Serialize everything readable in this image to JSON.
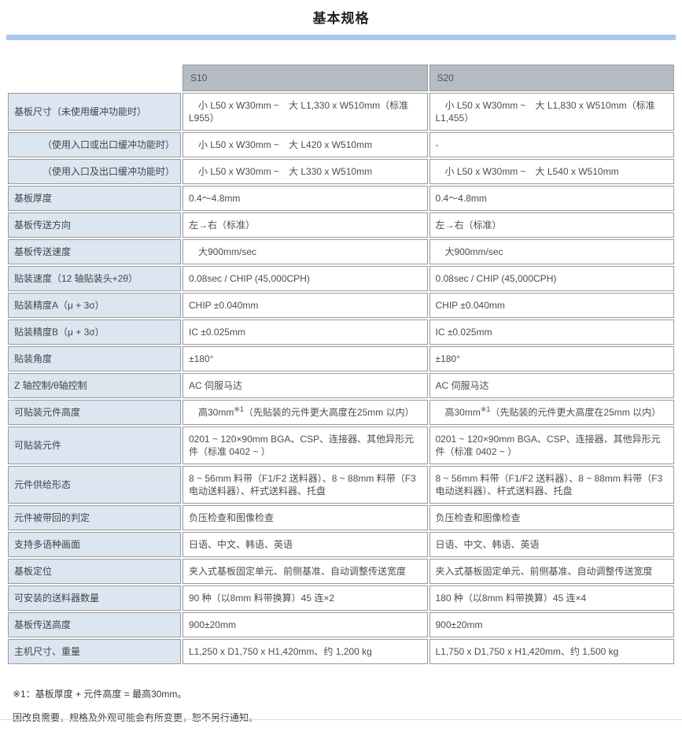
{
  "page": {
    "title": "基本规格"
  },
  "colors": {
    "accent_bar": "#a9c8ee",
    "header_bg": "#b6bcc4",
    "label_bg": "#dce6f1",
    "cell_border": "#9a9a9a"
  },
  "table": {
    "column_headers": [
      "S10",
      "S20"
    ],
    "rows": [
      {
        "label": "基板尺寸（未使用缓冲功能时）",
        "s10": "　小 L50 x W30mm ~　大 L1,330 x W510mm（标准L955）",
        "s20": "　小 L50 x W30mm ~　大 L1,830 x W510mm（标准L1,455）"
      },
      {
        "label": "（使用入口或出口缓冲功能时）",
        "label_align": "right",
        "s10": "　小 L50 x W30mm ~　大 L420 x W510mm",
        "s20": "-"
      },
      {
        "label": "（使用入口及出口缓冲功能时）",
        "label_align": "right",
        "s10": "　小 L50 x W30mm ~　大 L330 x W510mm",
        "s20": "　小 L50 x W30mm ~　大 L540 x W510mm"
      },
      {
        "label": "基板厚度",
        "s10": "0.4～4.8mm",
        "s20": "0.4～4.8mm"
      },
      {
        "label": "基板传送方向",
        "s10": "左→右（标准）",
        "s20": "左→右（标准）"
      },
      {
        "label": "基板传送速度",
        "s10": "　大900mm/sec",
        "s20": "　大900mm/sec"
      },
      {
        "label": "贴装速度（12 轴贴装头+2θ）",
        "s10": "0.08sec / CHIP (45,000CPH)",
        "s20": "0.08sec / CHIP (45,000CPH)"
      },
      {
        "label": "贴装精度A（μ + 3σ）",
        "s10": "CHIP ±0.040mm",
        "s20": "CHIP ±0.040mm"
      },
      {
        "label": "贴装精度B（μ + 3σ）",
        "s10": "IC ±0.025mm",
        "s20": "IC ±0.025mm"
      },
      {
        "label": "贴装角度",
        "s10": "±180°",
        "s20": "±180°"
      },
      {
        "label": "Z 轴控制/θ轴控制",
        "s10": "AC 伺服马达",
        "s20": "AC 伺服马达"
      },
      {
        "label": "可贴装元件高度",
        "s10": "　高30mm※1（先贴装的元件更大高度在25mm 以内）",
        "s20": "　高30mm※1（先贴装的元件更大高度在25mm 以内）"
      },
      {
        "label": "可贴装元件",
        "s10": "0201 ~ 120×90mm BGA、CSP、连接器、其他异形元件（标准 0402 ~ ）",
        "s20": "0201 ~ 120×90mm BGA、CSP、连接器、其他异形元件（标准 0402 ~ ）"
      },
      {
        "label": "元件供给形态",
        "s10": "8 ~ 56mm 料带（F1/F2 送料器）、8 ~ 88mm 料带（F3 电动送料器）、杆式送料器、托盘",
        "s20": "8 ~ 56mm 料带（F1/F2 送料器）、8 ~ 88mm 料带（F3 电动送料器）、杆式送料器、托盘"
      },
      {
        "label": "元件被带回的判定",
        "s10": "负压检查和图像检查",
        "s20": "负压检查和图像检查"
      },
      {
        "label": "支持多语种画面",
        "s10": "日语、中文、韩语、英语",
        "s20": "日语、中文、韩语、英语"
      },
      {
        "label": "基板定位",
        "s10": "夹入式基板固定单元、前侧基准、自动调整传送宽度",
        "s20": "夹入式基板固定单元、前侧基准、自动调整传送宽度"
      },
      {
        "label": "可安装的送料器数量",
        "s10": "90 种（以8mm 料带换算）45 连×2",
        "s20": "180 种（以8mm 料带换算）45 连×4"
      },
      {
        "label": "基板传送高度",
        "s10": "900±20mm",
        "s20": "900±20mm"
      },
      {
        "label": "主机尺寸、重量",
        "s10": "L1,250 x D1,750 x H1,420mm、约 1,200 kg",
        "s20": "L1,750 x D1,750 x H1,420mm、约 1,500 kg"
      }
    ]
  },
  "footnotes": [
    "※1：基板厚度 + 元件高度 = 最高30mm。",
    "因改良需要，规格及外观可能会有所变更，恕不另行通知。"
  ]
}
